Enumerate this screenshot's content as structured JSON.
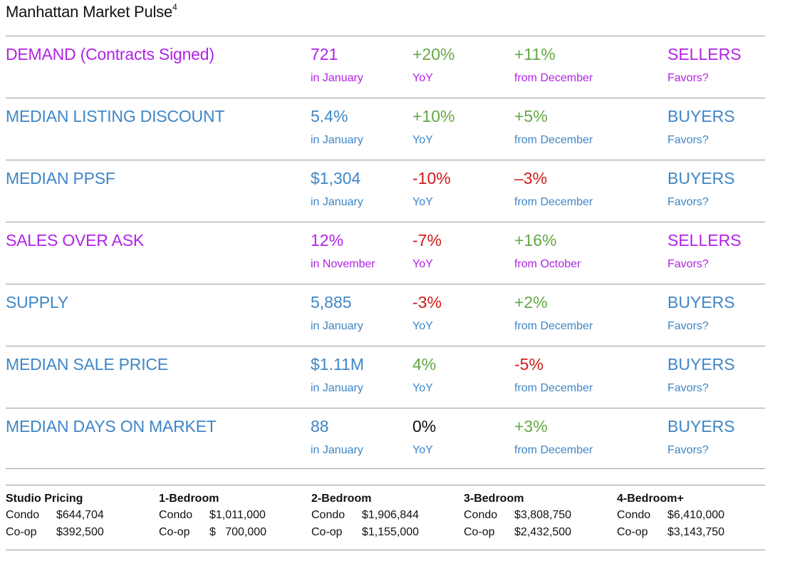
{
  "title": "Manhattan Market Pulse",
  "title_sup": "4",
  "colors": {
    "purple": "#b223e6",
    "blue": "#3f86c6",
    "green": "#64a846",
    "red": "#d11a1a",
    "black": "#111111"
  },
  "metrics": [
    {
      "name": "DEMAND (Contracts Signed)",
      "value": "721",
      "period": "in January",
      "yoy": "+20%",
      "yoy_label": "YoY",
      "change": "+11%",
      "change_label": "from December",
      "favors": "SELLERS",
      "favors_label": "Favors?",
      "theme": "purple",
      "yoy_color": "green",
      "change_color": "green"
    },
    {
      "name": "MEDIAN LISTING DISCOUNT",
      "value": "5.4%",
      "period": "in January",
      "yoy": "+10%",
      "yoy_label": "YoY",
      "change": "+5%",
      "change_label": "from December",
      "favors": "BUYERS",
      "favors_label": "Favors?",
      "theme": "blue",
      "yoy_color": "green",
      "change_color": "green"
    },
    {
      "name": "MEDIAN PPSF",
      "value": "$1,304",
      "period": "in January",
      "yoy": "-10%",
      "yoy_label": "YoY",
      "change": "–3%",
      "change_label": "from December",
      "favors": "BUYERS",
      "favors_label": "Favors?",
      "theme": "blue",
      "yoy_color": "red",
      "change_color": "red"
    },
    {
      "name": "SALES OVER ASK",
      "value": "12%",
      "period": "in November",
      "yoy": "-7%",
      "yoy_label": "YoY",
      "change": "+16%",
      "change_label": "from October",
      "favors": "SELLERS",
      "favors_label": "Favors?",
      "theme": "purple",
      "yoy_color": "red",
      "change_color": "green"
    },
    {
      "name": "SUPPLY",
      "value": "5,885",
      "period": "in January",
      "yoy": "-3%",
      "yoy_label": "YoY",
      "change": "+2%",
      "change_label": "from December",
      "favors": "BUYERS",
      "favors_label": "Favors?",
      "theme": "blue",
      "yoy_color": "red",
      "change_color": "green"
    },
    {
      "name": "MEDIAN SALE PRICE",
      "value": "$1.11M",
      "period": "in January",
      "yoy": "4%",
      "yoy_label": "YoY",
      "change": "-5%",
      "change_label": "from December",
      "favors": "BUYERS",
      "favors_label": "Favors?",
      "theme": "blue",
      "yoy_color": "green",
      "change_color": "red"
    },
    {
      "name": "MEDIAN DAYS ON MARKET",
      "value": "88",
      "period": "in January",
      "yoy": "0%",
      "yoy_label": "YoY",
      "change": "+3%",
      "change_label": "from December",
      "favors": "BUYERS",
      "favors_label": "Favors?",
      "theme": "blue",
      "yoy_color": "black",
      "change_color": "green"
    }
  ],
  "pricing": [
    {
      "heading": "Studio Pricing",
      "condo_label": "Condo",
      "condo": "$644,704",
      "coop_label": "Co-op",
      "coop": "$392,500"
    },
    {
      "heading": "1-Bedroom",
      "condo_label": "Condo",
      "condo": "$1,011,000",
      "coop_label": "Co-op",
      "coop": "$   700,000"
    },
    {
      "heading": "2-Bedroom",
      "condo_label": "Condo",
      "condo": "$1,906,844",
      "coop_label": "Co-op",
      "coop": "$1,155,000"
    },
    {
      "heading": "3-Bedroom",
      "condo_label": "Condo",
      "condo": "$3,808,750",
      "coop_label": "Co-op",
      "coop": "$2,432,500"
    },
    {
      "heading": "4-Bedroom+",
      "condo_label": "Condo",
      "condo": "$6,410,000",
      "coop_label": "Co-op",
      "coop": "$3,143,750"
    }
  ]
}
